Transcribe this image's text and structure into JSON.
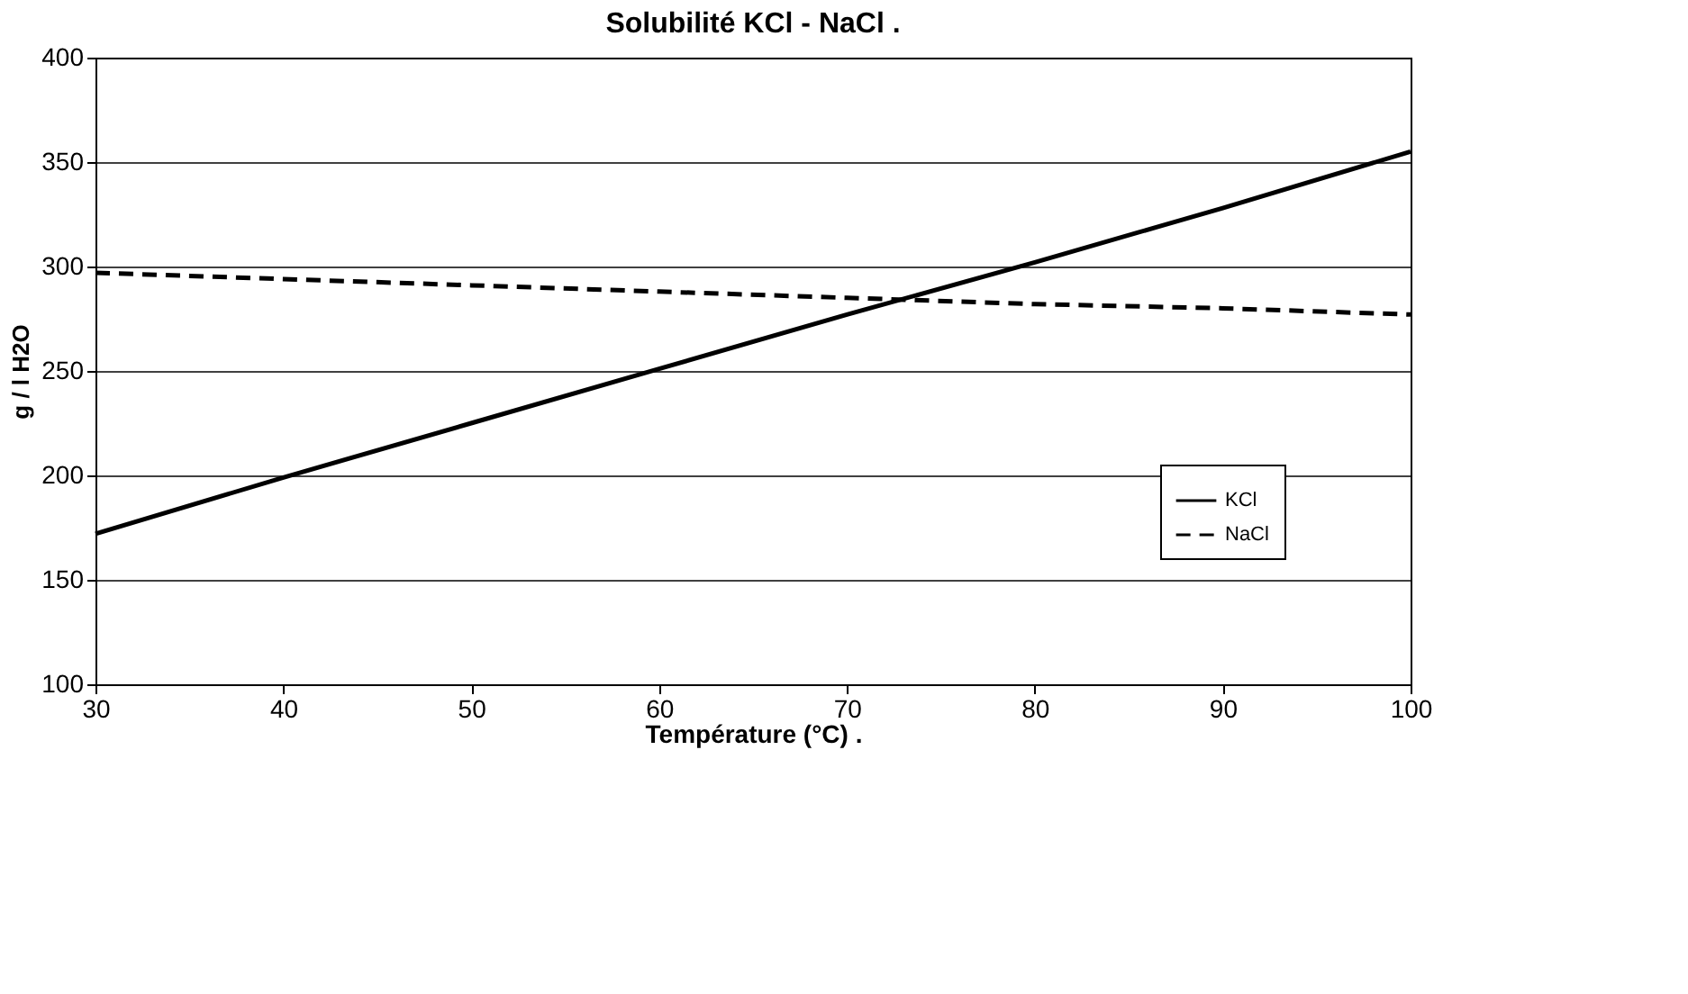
{
  "chart_data": {
    "type": "line",
    "title": "Solubilité KCl - NaCl   .",
    "xlabel": "Température  (°C)   .",
    "ylabel": "g / l H2O",
    "x": [
      30,
      40,
      50,
      60,
      70,
      80,
      90,
      100
    ],
    "series": [
      {
        "name": "KCl",
        "color": "#000000",
        "line_style": "solid",
        "values": [
          172,
          199,
          225,
          251,
          277,
          302,
          328,
          355
        ]
      },
      {
        "name": "NaCl",
        "color": "#000000",
        "line_style": "dashed",
        "values": [
          297,
          294,
          291,
          288,
          285,
          282,
          280,
          277
        ]
      }
    ],
    "xlim": [
      30,
      100
    ],
    "xticks": [
      30,
      40,
      50,
      60,
      70,
      80,
      90,
      100
    ],
    "ylim": [
      100,
      400
    ],
    "yticks": [
      100,
      150,
      200,
      250,
      300,
      350,
      400
    ],
    "grid": "y",
    "legend": "bottom right",
    "marker": "none"
  }
}
